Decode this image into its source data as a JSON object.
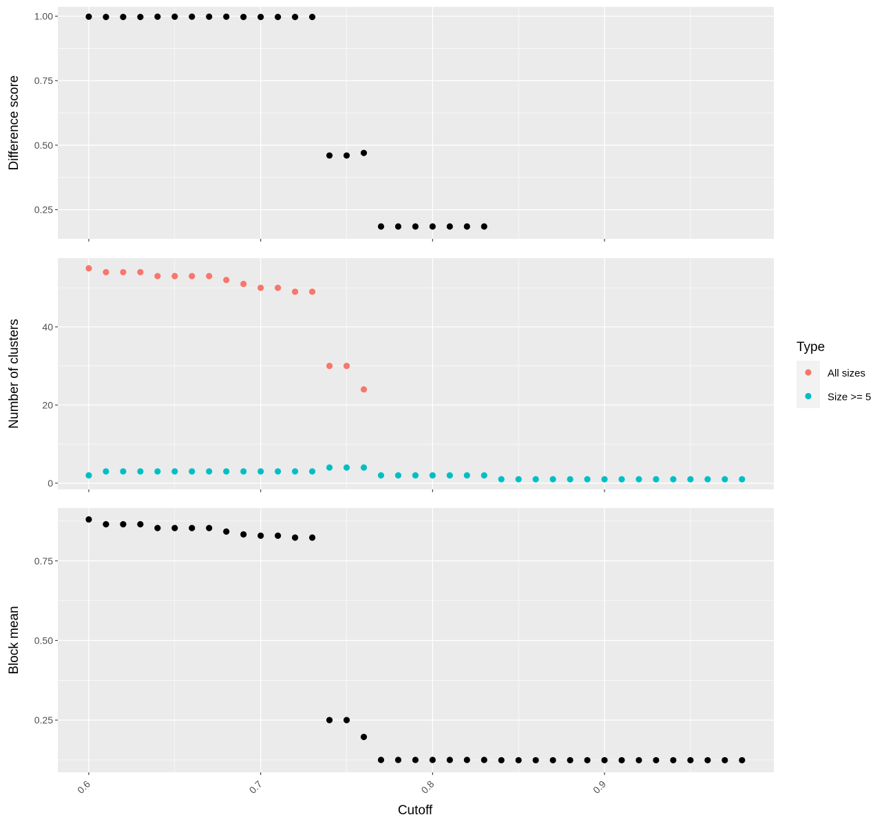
{
  "chart_data": [
    {
      "type": "scatter",
      "panel": "top",
      "ylabel": "Difference score",
      "xlim": [
        0.582,
        0.9985
      ],
      "ylim": [
        0.137,
        1.036
      ],
      "yticks": [
        0.25,
        0.5,
        0.75,
        1.0
      ],
      "ytick_labels": [
        "0.25",
        "0.50",
        "0.75",
        "1.00"
      ],
      "xticks": [
        0.6,
        0.7,
        0.8,
        0.9
      ],
      "show_x_labels": false,
      "grid": true,
      "series": [
        {
          "color": "#000000",
          "x": [
            0.6,
            0.61,
            0.62,
            0.63,
            0.64,
            0.65,
            0.66,
            0.67,
            0.68,
            0.69,
            0.7,
            0.71,
            0.72,
            0.73,
            0.74,
            0.75,
            0.76,
            0.77,
            0.78,
            0.79,
            0.8,
            0.81,
            0.82,
            0.83
          ],
          "y": [
            0.998,
            0.997,
            0.997,
            0.997,
            0.998,
            0.998,
            0.998,
            0.998,
            0.998,
            0.997,
            0.997,
            0.997,
            0.997,
            0.997,
            0.46,
            0.46,
            0.47,
            0.185,
            0.185,
            0.185,
            0.185,
            0.185,
            0.185,
            0.185
          ]
        }
      ]
    },
    {
      "type": "scatter",
      "panel": "middle",
      "ylabel": "Number of clusters",
      "xlim": [
        0.582,
        0.9985
      ],
      "ylim": [
        -1.6,
        57.6
      ],
      "yticks": [
        0,
        20,
        40
      ],
      "ytick_labels": [
        "0",
        "20",
        "40"
      ],
      "xticks": [
        0.6,
        0.7,
        0.8,
        0.9
      ],
      "show_x_labels": false,
      "grid": true,
      "legend": {
        "title": "Type",
        "entries": [
          {
            "label": "All sizes",
            "color": "#F8766D"
          },
          {
            "label": "Size >= 5",
            "color": "#00BFC4"
          }
        ]
      },
      "series": [
        {
          "name": "All sizes",
          "color": "#F8766D",
          "x": [
            0.6,
            0.61,
            0.62,
            0.63,
            0.64,
            0.65,
            0.66,
            0.67,
            0.68,
            0.69,
            0.7,
            0.71,
            0.72,
            0.73,
            0.74,
            0.75,
            0.76
          ],
          "y": [
            55,
            54,
            54,
            54,
            53,
            53,
            53,
            53,
            52,
            51,
            50,
            50,
            49,
            49,
            30,
            30,
            24
          ]
        },
        {
          "name": "Size >= 5",
          "color": "#00BFC4",
          "x": [
            0.6,
            0.61,
            0.62,
            0.63,
            0.64,
            0.65,
            0.66,
            0.67,
            0.68,
            0.69,
            0.7,
            0.71,
            0.72,
            0.73,
            0.74,
            0.75,
            0.76,
            0.77,
            0.78,
            0.79,
            0.8,
            0.81,
            0.82,
            0.83,
            0.84,
            0.85,
            0.86,
            0.87,
            0.88,
            0.89,
            0.9,
            0.91,
            0.92,
            0.93,
            0.94,
            0.95,
            0.96,
            0.97,
            0.98
          ],
          "y": [
            2,
            3,
            3,
            3,
            3,
            3,
            3,
            3,
            3,
            3,
            3,
            3,
            3,
            3,
            4,
            4,
            4,
            2,
            2,
            2,
            2,
            2,
            2,
            2,
            1,
            1,
            1,
            1,
            1,
            1,
            1,
            1,
            1,
            1,
            1,
            1,
            1,
            1,
            1
          ]
        }
      ]
    },
    {
      "type": "scatter",
      "panel": "bottom",
      "ylabel": "Block mean",
      "xlabel": "Cutoff",
      "xlim": [
        0.582,
        0.9985
      ],
      "ylim": [
        0.086,
        0.916
      ],
      "yticks": [
        0.25,
        0.5,
        0.75
      ],
      "ytick_labels": [
        "0.25",
        "0.50",
        "0.75"
      ],
      "xticks": [
        0.6,
        0.7,
        0.8,
        0.9
      ],
      "xtick_labels": [
        "0.6",
        "0.7",
        "0.8",
        "0.9"
      ],
      "show_x_labels": true,
      "grid": true,
      "series": [
        {
          "color": "#000000",
          "x": [
            0.6,
            0.61,
            0.62,
            0.63,
            0.64,
            0.65,
            0.66,
            0.67,
            0.68,
            0.69,
            0.7,
            0.71,
            0.72,
            0.73,
            0.74,
            0.75,
            0.76,
            0.77,
            0.78,
            0.79,
            0.8,
            0.81,
            0.82,
            0.83,
            0.84,
            0.85,
            0.86,
            0.87,
            0.88,
            0.89,
            0.9,
            0.91,
            0.92,
            0.93,
            0.94,
            0.95,
            0.96,
            0.97,
            0.98
          ],
          "y": [
            0.88,
            0.865,
            0.865,
            0.865,
            0.853,
            0.853,
            0.853,
            0.853,
            0.842,
            0.833,
            0.829,
            0.829,
            0.823,
            0.823,
            0.25,
            0.25,
            0.197,
            0.125,
            0.125,
            0.125,
            0.125,
            0.125,
            0.125,
            0.125,
            0.124,
            0.124,
            0.124,
            0.124,
            0.124,
            0.124,
            0.124,
            0.124,
            0.124,
            0.124,
            0.124,
            0.124,
            0.124,
            0.124,
            0.124
          ]
        }
      ]
    }
  ]
}
